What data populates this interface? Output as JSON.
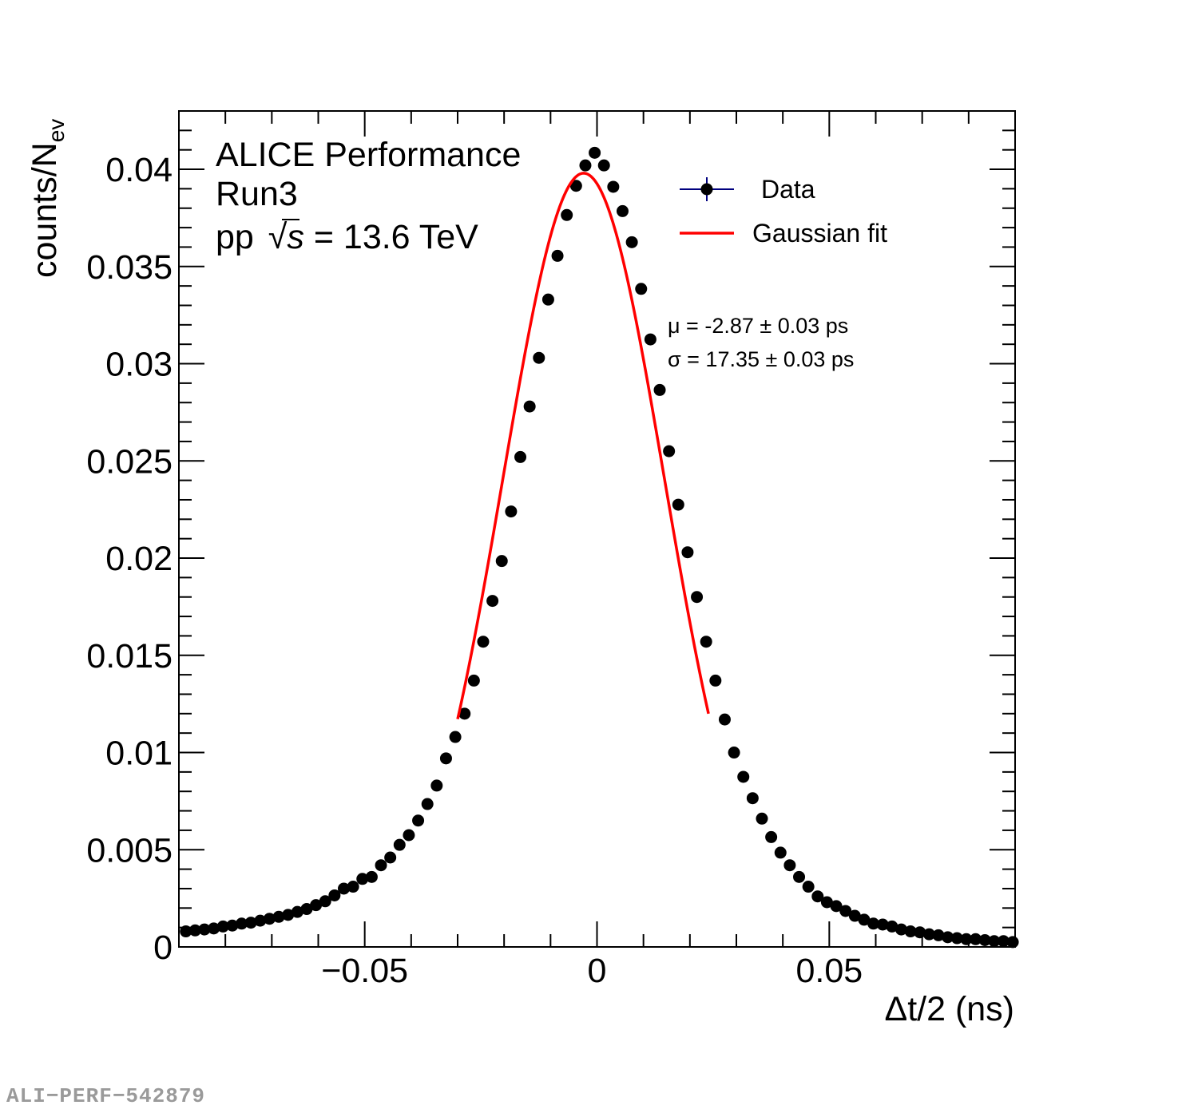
{
  "chart_data": {
    "type": "scatter",
    "title": "",
    "xlabel": "Δt/2 (ns)",
    "ylabel_main": "counts/N",
    "ylabel_sub": "ev",
    "xlim": [
      -0.09,
      0.09
    ],
    "ylim": [
      0,
      0.043
    ],
    "x_ticks": [
      {
        "value": -0.05,
        "label": "−0.05"
      },
      {
        "value": 0,
        "label": "0"
      },
      {
        "value": 0.05,
        "label": "0.05"
      }
    ],
    "y_ticks": [
      {
        "value": 0,
        "label": "0"
      },
      {
        "value": 0.005,
        "label": "0.005"
      },
      {
        "value": 0.01,
        "label": "0.01"
      },
      {
        "value": 0.015,
        "label": "0.015"
      },
      {
        "value": 0.02,
        "label": "0.02"
      },
      {
        "value": 0.025,
        "label": "0.025"
      },
      {
        "value": 0.03,
        "label": "0.03"
      },
      {
        "value": 0.035,
        "label": "0.035"
      },
      {
        "value": 0.04,
        "label": "0.04"
      }
    ],
    "banner": {
      "line1": "ALICE Performance",
      "line2": "Run3",
      "line3_pre": "pp",
      "line3_sqrt": "√",
      "line3_s": "s",
      "line3_post": " = 13.6 TeV"
    },
    "legend": [
      {
        "label": "Data",
        "kind": "marker",
        "color": "#000000",
        "errorbar_color": "#00007f"
      },
      {
        "label": "Gaussian fit",
        "kind": "line",
        "color": "#ff0000"
      }
    ],
    "annotations": {
      "mu": "μ = -2.87 ± 0.03 ps",
      "sigma": "σ = 17.35 ± 0.03 ps"
    },
    "fit": {
      "function": "gaussian",
      "mean_ns": -0.00287,
      "sigma_ns": 0.01735,
      "amplitude": 0.0398,
      "x_range": [
        -0.03,
        0.024
      ],
      "color": "#ff0000"
    },
    "series": [
      {
        "name": "Data",
        "color": "#000000",
        "x": [
          -0.0885,
          -0.0865,
          -0.0845,
          -0.0825,
          -0.0805,
          -0.0785,
          -0.0765,
          -0.0745,
          -0.0725,
          -0.0705,
          -0.0685,
          -0.0665,
          -0.0645,
          -0.0625,
          -0.0605,
          -0.0585,
          -0.0565,
          -0.0545,
          -0.0525,
          -0.0505,
          -0.0485,
          -0.0465,
          -0.0445,
          -0.0425,
          -0.0405,
          -0.0385,
          -0.0365,
          -0.0345,
          -0.0325,
          -0.0305,
          -0.0285,
          -0.0265,
          -0.0245,
          -0.0225,
          -0.0205,
          -0.0185,
          -0.0165,
          -0.0145,
          -0.0125,
          -0.0105,
          -0.0085,
          -0.0065,
          -0.0045,
          -0.0025,
          -0.0005,
          0.0015,
          0.0035,
          0.0055,
          0.0075,
          0.0095,
          0.0115,
          0.0135,
          0.0155,
          0.0175,
          0.0195,
          0.0215,
          0.0235,
          0.0255,
          0.0275,
          0.0295,
          0.0315,
          0.0335,
          0.0355,
          0.0375,
          0.0395,
          0.0415,
          0.0435,
          0.0455,
          0.0475,
          0.0495,
          0.0515,
          0.0535,
          0.0555,
          0.0575,
          0.0595,
          0.0615,
          0.0635,
          0.0655,
          0.0675,
          0.0695,
          0.0715,
          0.0735,
          0.0755,
          0.0775,
          0.0795,
          0.0815,
          0.0835,
          0.0855,
          0.0875,
          0.0895
        ],
        "y": [
          0.0008,
          0.00085,
          0.0009,
          0.00095,
          0.00105,
          0.0011,
          0.0012,
          0.00125,
          0.00135,
          0.00145,
          0.00155,
          0.00165,
          0.0018,
          0.00195,
          0.00215,
          0.00235,
          0.00265,
          0.003,
          0.0031,
          0.0035,
          0.0036,
          0.0042,
          0.0046,
          0.00525,
          0.00575,
          0.0065,
          0.00735,
          0.0083,
          0.0097,
          0.0108,
          0.012,
          0.0137,
          0.0157,
          0.0178,
          0.01985,
          0.0224,
          0.0252,
          0.0278,
          0.0303,
          0.0333,
          0.03555,
          0.03765,
          0.03915,
          0.0402,
          0.04085,
          0.0402,
          0.0391,
          0.03785,
          0.03625,
          0.03385,
          0.03125,
          0.02865,
          0.0255,
          0.02275,
          0.0203,
          0.018,
          0.0157,
          0.0137,
          0.0117,
          0.01,
          0.00875,
          0.00765,
          0.0066,
          0.00565,
          0.00485,
          0.0042,
          0.0036,
          0.0031,
          0.0026,
          0.0023,
          0.0021,
          0.00185,
          0.0016,
          0.0014,
          0.0012,
          0.00115,
          0.00105,
          0.0009,
          0.0008,
          0.00075,
          0.00065,
          0.0006,
          0.0005,
          0.00045,
          0.0004,
          0.0004,
          0.00035,
          0.0003,
          0.0003,
          0.00025
        ]
      }
    ]
  },
  "footer": {
    "id_label": "ALI−PERF−542879"
  }
}
